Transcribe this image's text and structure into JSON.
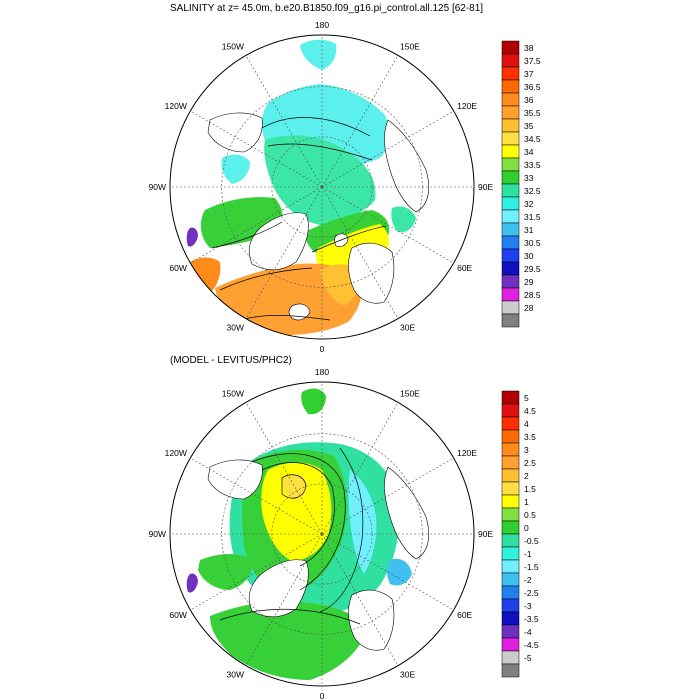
{
  "titles": {
    "top": "SALINITY at z=  45.0m, b.e20.B1850.f09_g16.pi_control.all.125 [62-81]",
    "bottom": "(MODEL - LEVITUS/PHC2)"
  },
  "longitude_labels": [
    "180",
    "150E",
    "120E",
    "90E",
    "60E",
    "30E",
    "0",
    "30W",
    "60W",
    "90W",
    "120W",
    "150W"
  ],
  "projection": "polar-stereographic-north",
  "panels": [
    {
      "id": "salinity",
      "legend": {
        "labels": [
          "38",
          "37.5",
          "37",
          "36.5",
          "36",
          "35.5",
          "35",
          "34.5",
          "34",
          "33.5",
          "33",
          "32.5",
          "32",
          "31.5",
          "31",
          "30.5",
          "30",
          "29.5",
          "29",
          "28.5",
          "28"
        ],
        "colors": [
          "#b00000",
          "#e01010",
          "#ff3000",
          "#ff6a00",
          "#ff8c1a",
          "#ffa030",
          "#ffc030",
          "#ffe040",
          "#ffff00",
          "#80e040",
          "#30d030",
          "#30e0a0",
          "#30f0e0",
          "#70f0ff",
          "#40c0f0",
          "#2080f0",
          "#2040f0",
          "#1010c0",
          "#7030c0",
          "#e020e0",
          "#cccccc",
          "#808080"
        ]
      }
    },
    {
      "id": "difference",
      "legend": {
        "labels": [
          "5",
          "4.5",
          "4",
          "3.5",
          "3",
          "2.5",
          "2",
          "1.5",
          "1",
          "0.5",
          "0",
          "-0.5",
          "-1",
          "-1.5",
          "-2",
          "-2.5",
          "-3",
          "-3.5",
          "-4",
          "-4.5",
          "-5"
        ],
        "colors": [
          "#b00000",
          "#e01010",
          "#ff3000",
          "#ff6a00",
          "#ff8c1a",
          "#ffa030",
          "#ffc030",
          "#ffe040",
          "#ffff00",
          "#80e040",
          "#30d030",
          "#30e0a0",
          "#30f0e0",
          "#70f0ff",
          "#40c0f0",
          "#2080f0",
          "#2040f0",
          "#1010c0",
          "#7030c0",
          "#e020e0",
          "#cccccc",
          "#808080"
        ]
      }
    }
  ]
}
